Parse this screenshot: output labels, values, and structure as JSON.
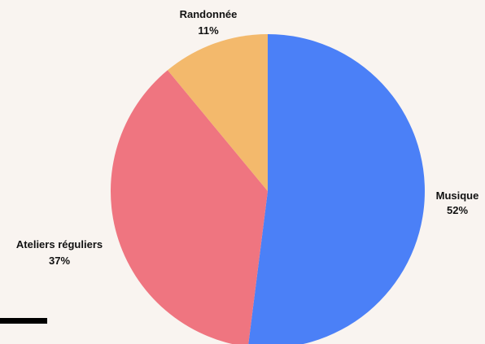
{
  "chart_data": {
    "type": "pie",
    "start_angle_deg": 0,
    "direction": "clockwise",
    "slices": [
      {
        "name": "Musique",
        "value": 52,
        "label": "52%",
        "color": "#4b80f7"
      },
      {
        "name": "Ateliers réguliers",
        "value": 37,
        "label": "37%",
        "color": "#ef7580"
      },
      {
        "name": "Randonnée",
        "value": 11,
        "label": "11%",
        "color": "#f3b96c"
      }
    ]
  }
}
